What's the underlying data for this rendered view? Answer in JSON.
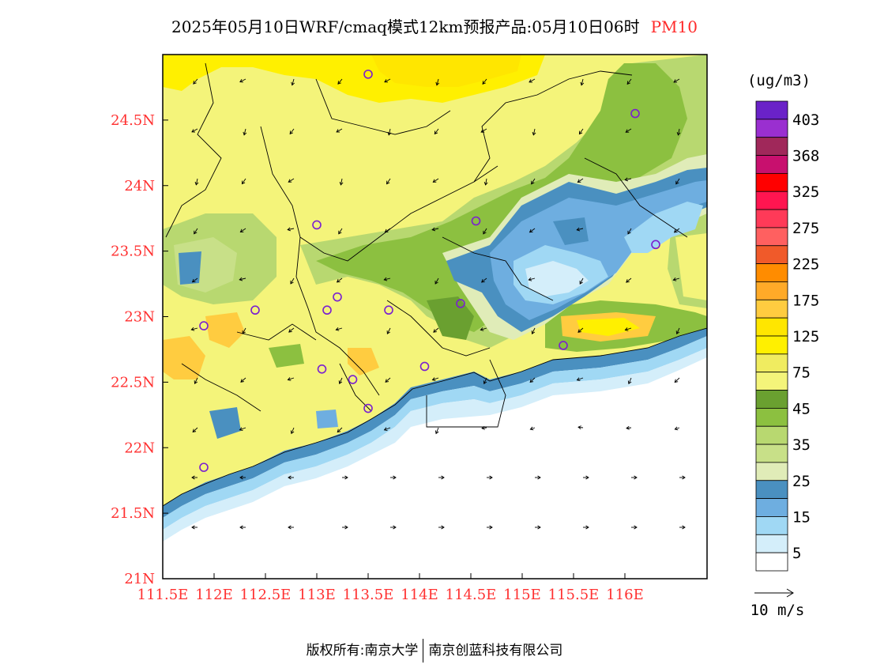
{
  "title": {
    "main": "2025年05月10日WRF/cmaq模式12km预报产品:05月10日06时",
    "variable": "PM10"
  },
  "footer": {
    "left": "版权所有:南京大学",
    "right": "南京创蓝科技有限公司"
  },
  "chart_data": {
    "type": "heatmap",
    "title": "2025年05月10日WRF/cmaq模式12km预报产品:05月10日06时 PM10",
    "x_ticks": [
      "111.5E",
      "112E",
      "112.5E",
      "113E",
      "113.5E",
      "114E",
      "114.5E",
      "115E",
      "115.5E",
      "116E"
    ],
    "y_ticks": [
      "21N",
      "21.5N",
      "22N",
      "22.5N",
      "23N",
      "23.5N",
      "24N",
      "24.5N"
    ],
    "xlim": [
      111.5,
      116.8
    ],
    "ylim": [
      21,
      25
    ],
    "colorbar": {
      "unit": "(ug/m3)",
      "labels": [
        "403",
        "368",
        "325",
        "275",
        "225",
        "175",
        "125",
        "75",
        "45",
        "35",
        "25",
        "15",
        "5"
      ],
      "colors": [
        "#6a22c8",
        "#9a2fd0",
        "#a0285a",
        "#c8106e",
        "#ff0000",
        "#ff1550",
        "#ff3a58",
        "#ff6060",
        "#f05a2a",
        "#ff8c00",
        "#ffaa28",
        "#ffcc40",
        "#ffe600",
        "#fff000",
        "#f0ec60",
        "#f4f47a",
        "#6aa030",
        "#8cc040",
        "#b8d870",
        "#c8e088",
        "#e0ecb8",
        "#4a90c0",
        "#6eaee0",
        "#a0d8f4",
        "#d4eefa",
        "#ffffff"
      ]
    },
    "wind_legend": "10 m/s",
    "sites": [
      [
        113.5,
        24.85
      ],
      [
        116.1,
        24.55
      ],
      [
        114.55,
        23.73
      ],
      [
        113.0,
        23.7
      ],
      [
        116.3,
        23.55
      ],
      [
        113.2,
        23.15
      ],
      [
        113.1,
        23.05
      ],
      [
        112.4,
        23.05
      ],
      [
        113.7,
        23.05
      ],
      [
        114.4,
        23.1
      ],
      [
        111.9,
        22.93
      ],
      [
        115.4,
        22.78
      ],
      [
        113.05,
        22.6
      ],
      [
        113.35,
        22.52
      ],
      [
        114.05,
        22.62
      ],
      [
        113.5,
        22.3
      ],
      [
        111.9,
        21.85
      ]
    ]
  }
}
